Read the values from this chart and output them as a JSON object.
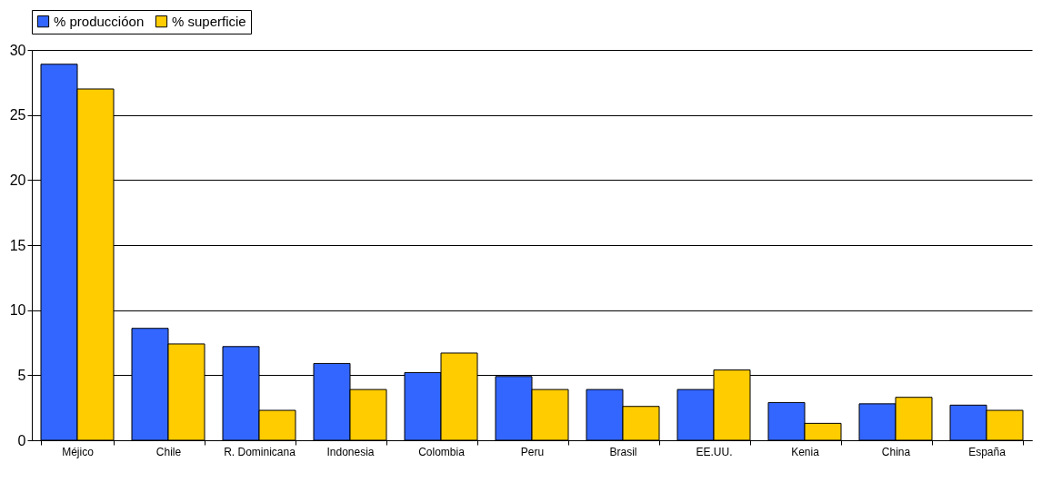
{
  "chart_data": {
    "type": "bar",
    "categories": [
      "Méjico",
      "Chile",
      "R. Dominicana",
      "Indonesia",
      "Colombia",
      "Peru",
      "Brasil",
      "EE.UU.",
      "Kenia",
      "China",
      "España"
    ],
    "series": [
      {
        "name": "% produccióon",
        "color": "#3366ff",
        "values": [
          28.9,
          8.6,
          7.2,
          5.9,
          5.2,
          4.9,
          3.9,
          3.9,
          2.9,
          2.8,
          2.7
        ]
      },
      {
        "name": "% superficie",
        "color": "#ffcc00",
        "values": [
          27.0,
          7.4,
          2.3,
          3.9,
          6.7,
          3.9,
          2.6,
          5.4,
          1.3,
          3.3,
          2.3
        ]
      }
    ],
    "ylim": [
      0,
      30
    ],
    "yticks": [
      0,
      5,
      10,
      15,
      20,
      25,
      30
    ],
    "grid": "y",
    "legend": "top"
  }
}
